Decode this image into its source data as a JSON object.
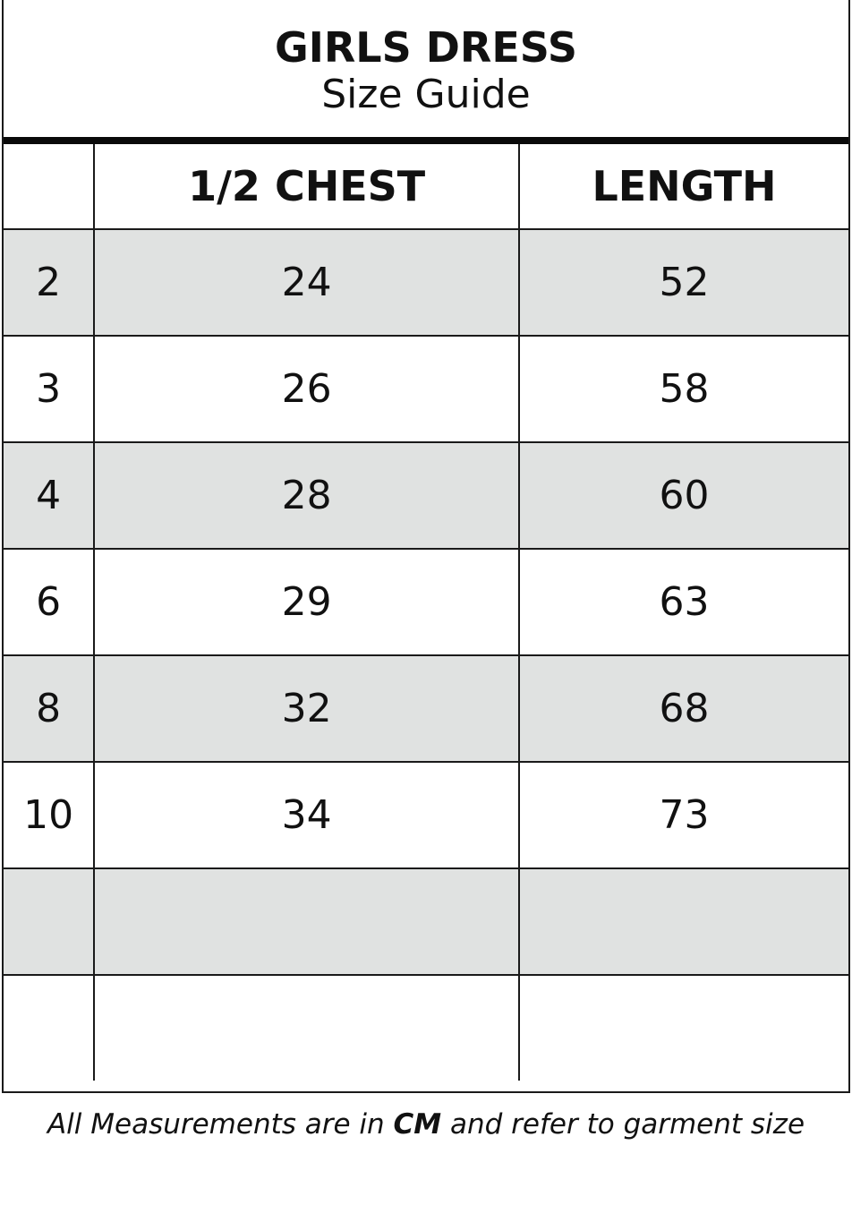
{
  "title": "GIRLS DRESS",
  "subtitle": "Size Guide",
  "table": {
    "headers": [
      "",
      "1/2 CHEST",
      "LENGTH"
    ],
    "rows": [
      [
        "2",
        "24",
        "52"
      ],
      [
        "3",
        "26",
        "58"
      ],
      [
        "4",
        "28",
        "60"
      ],
      [
        "6",
        "29",
        "63"
      ],
      [
        "8",
        "32",
        "68"
      ],
      [
        "10",
        "34",
        "73"
      ],
      [
        "",
        "",
        ""
      ],
      [
        "",
        "",
        ""
      ]
    ]
  },
  "note": {
    "before": "All Measurements are in ",
    "unit": "CM",
    "after": " and refer to garment size"
  },
  "colors": {
    "shaded_row": "#e0e2e1",
    "border": "#1a1a1a"
  }
}
